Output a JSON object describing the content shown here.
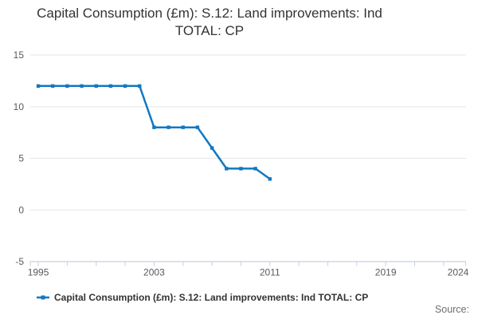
{
  "title": {
    "line1": "Capital Consumption (£m): S.12: Land improvements: Ind",
    "line2": "TOTAL: CP"
  },
  "legend": {
    "label": "Capital Consumption (£m): S.12: Land improvements: Ind TOTAL: CP"
  },
  "source": {
    "label": "Source:"
  },
  "colors": {
    "line": "#1178c0",
    "grid": "#e6e6e6",
    "axis": "#c4d0e0",
    "axis_text": "#5a5a5a",
    "title_text": "#333333",
    "source_text": "#6f6f6f"
  },
  "chart_data": {
    "type": "line",
    "title": "Capital Consumption (£m): S.12: Land improvements: Ind TOTAL: CP",
    "xlabel": "",
    "ylabel": "",
    "xlim": [
      1994.42,
      2024.55
    ],
    "ylim": [
      -5,
      15
    ],
    "grid": "horizontal",
    "legend_position": "bottom-left",
    "y_ticks": [
      15,
      10,
      5,
      0,
      -5
    ],
    "x_tick_labels": [
      {
        "year": 1995,
        "label": "1995"
      },
      {
        "year": 2003,
        "label": "2003"
      },
      {
        "year": 2011,
        "label": "2011"
      },
      {
        "year": 2019,
        "label": "2019"
      },
      {
        "year": 2024,
        "label": "2024"
      }
    ],
    "x_minor_tick_years": [
      1995,
      1997,
      1999,
      2001,
      2003,
      2005,
      2007,
      2009,
      2011,
      2013,
      2015,
      2017,
      2019,
      2021,
      2023
    ],
    "series": [
      {
        "name": "Capital Consumption (£m): S.12: Land improvements: Ind TOTAL: CP",
        "color": "#1178c0",
        "x": [
          1995,
          1996,
          1997,
          1998,
          1999,
          2000,
          2001,
          2002,
          2003,
          2004,
          2005,
          2006,
          2007,
          2008,
          2009,
          2010,
          2011
        ],
        "values": [
          12,
          12,
          12,
          12,
          12,
          12,
          12,
          12,
          8,
          8,
          8,
          8,
          6,
          4,
          4,
          4,
          3
        ]
      }
    ]
  }
}
